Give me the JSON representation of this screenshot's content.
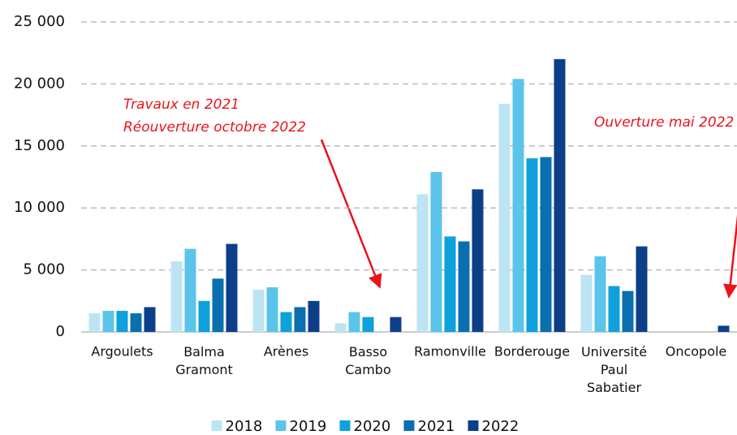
{
  "chart_data": {
    "type": "bar",
    "categories": [
      "Argoulets",
      "Balma Gramont",
      "Arènes",
      "Basso Cambo",
      "Ramonville",
      "Borderouge",
      "Université Paul Sabatier",
      "Oncopole"
    ],
    "series": [
      {
        "name": "2018",
        "color": "#bde4f4",
        "values": [
          1500,
          5700,
          3400,
          700,
          11100,
          18400,
          4600,
          0
        ]
      },
      {
        "name": "2019",
        "color": "#5bc4ea",
        "values": [
          1700,
          6700,
          3600,
          1600,
          12900,
          20400,
          6100,
          0
        ]
      },
      {
        "name": "2020",
        "color": "#0ea1dc",
        "values": [
          1700,
          2500,
          1600,
          1200,
          7700,
          14000,
          3700,
          0
        ]
      },
      {
        "name": "2021",
        "color": "#0a6fb0",
        "values": [
          1500,
          4300,
          2000,
          0,
          7300,
          14100,
          3300,
          0
        ]
      },
      {
        "name": "2022",
        "color": "#0c3f88",
        "values": [
          2000,
          7100,
          2500,
          1200,
          11500,
          22000,
          6900,
          500
        ]
      }
    ],
    "ylim": [
      0,
      25000
    ],
    "yticks": [
      0,
      {
        "value": 5000,
        "label": "5 000"
      },
      {
        "value": 10000,
        "label": "10 000"
      },
      {
        "value": 15000,
        "label": "15 000"
      },
      {
        "value": 20000,
        "label": "20 000"
      },
      {
        "value": 25000,
        "label": "25 000"
      }
    ],
    "grid": true,
    "legend": "bottom",
    "annotations": [
      "Travaux en 2021",
      "Réouverture octobre 2022",
      "Ouverture mai 2022"
    ]
  }
}
